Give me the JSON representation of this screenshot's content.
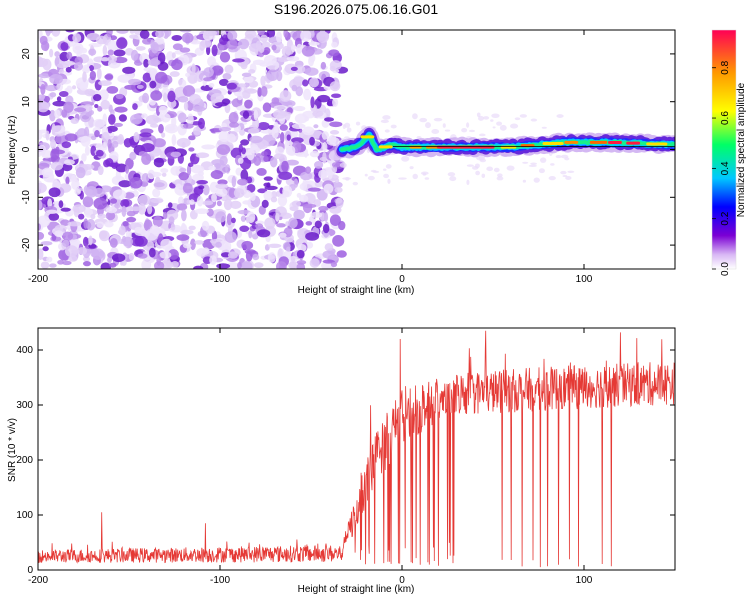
{
  "page": {
    "title": "S196.2026.075.06.16.G01"
  },
  "chart_data": [
    {
      "type": "heatmap",
      "title": "S196.2026.075.06.16.G01",
      "xlabel": "Height of straight line (km)",
      "ylabel": "Frequency (Hz)",
      "xlim": [
        -200,
        150
      ],
      "ylim": [
        -25,
        25
      ],
      "xticks": [
        -200,
        -100,
        0,
        100
      ],
      "xtick_labels": [
        "-200",
        "-100",
        "0",
        "100"
      ],
      "yticks": [
        -20,
        -10,
        0,
        10,
        20
      ],
      "ytick_labels": [
        "-20",
        "-10",
        "0",
        "10",
        "20"
      ],
      "colorbar": {
        "label": "Normalized spectral amplitude",
        "range": [
          0,
          0.95
        ],
        "ticks": [
          0,
          0.2,
          0.4,
          0.6,
          0.8
        ],
        "tick_labels": [
          "0.0",
          "0.2",
          "0.4",
          "0.6",
          "0.8"
        ],
        "colormap": [
          "#ffffff",
          "#7b00d4",
          "#0000ff",
          "#00c8ff",
          "#00ff66",
          "#ffff00",
          "#ff9900",
          "#ff0033"
        ]
      },
      "regions": [
        {
          "name": "noise",
          "x_range": [
            -200,
            -33
          ],
          "freq_range": [
            -25,
            25
          ],
          "amplitude": "0.0-0.1"
        },
        {
          "name": "signal_band",
          "x_range": [
            -33,
            150
          ],
          "freq_center": [
            {
              "x": -33,
              "f": 0
            },
            {
              "x": -25,
              "f": 0.5
            },
            {
              "x": -18,
              "f": 3
            },
            {
              "x": -14,
              "f": 0
            },
            {
              "x": -5,
              "f": 1
            },
            {
              "x": 0,
              "f": 0.5
            },
            {
              "x": 20,
              "f": 0.5
            },
            {
              "x": 60,
              "f": 0.5
            },
            {
              "x": 90,
              "f": 1.5
            },
            {
              "x": 115,
              "f": 1.5
            },
            {
              "x": 150,
              "f": 1
            }
          ],
          "amplitude": "0.3-0.95"
        }
      ]
    },
    {
      "type": "line",
      "xlabel": "Height of straight line (km)",
      "ylabel": "SNR (10 * v/v)",
      "xlim": [
        -200,
        150
      ],
      "ylim": [
        0,
        440
      ],
      "xticks": [
        -200,
        -100,
        0,
        100
      ],
      "xtick_labels": [
        "-200",
        "-100",
        "0",
        "100"
      ],
      "yticks": [
        0,
        100,
        200,
        300,
        400
      ],
      "ytick_labels": [
        "0",
        "100",
        "200",
        "300",
        "400"
      ],
      "series": [
        {
          "name": "SNR",
          "color": "#e53935",
          "profile": [
            {
              "x": -200,
              "baseline": 25,
              "spread": 15
            },
            {
              "x": -33,
              "baseline": 30,
              "spread": 20
            },
            {
              "x": -20,
              "baseline": 160,
              "spread": 60
            },
            {
              "x": -10,
              "baseline": 230,
              "spread": 70
            },
            {
              "x": 0,
              "baseline": 280,
              "spread": 60
            },
            {
              "x": 30,
              "baseline": 320,
              "spread": 50
            },
            {
              "x": 80,
              "baseline": 330,
              "spread": 50
            },
            {
              "x": 150,
              "baseline": 340,
              "spread": 50
            }
          ],
          "peaks": [
            {
              "x": -165,
              "y": 105
            },
            {
              "x": -108,
              "y": 85
            },
            {
              "x": -1,
              "y": 420
            },
            {
              "x": 46,
              "y": 435
            },
            {
              "x": 120,
              "y": 432
            }
          ],
          "dropouts_x": [
            -20,
            -15,
            -10,
            -6,
            -2,
            5,
            10,
            15,
            20,
            25,
            28,
            55,
            60,
            66,
            72,
            76,
            80,
            86,
            92,
            97,
            110,
            115
          ]
        }
      ]
    }
  ]
}
